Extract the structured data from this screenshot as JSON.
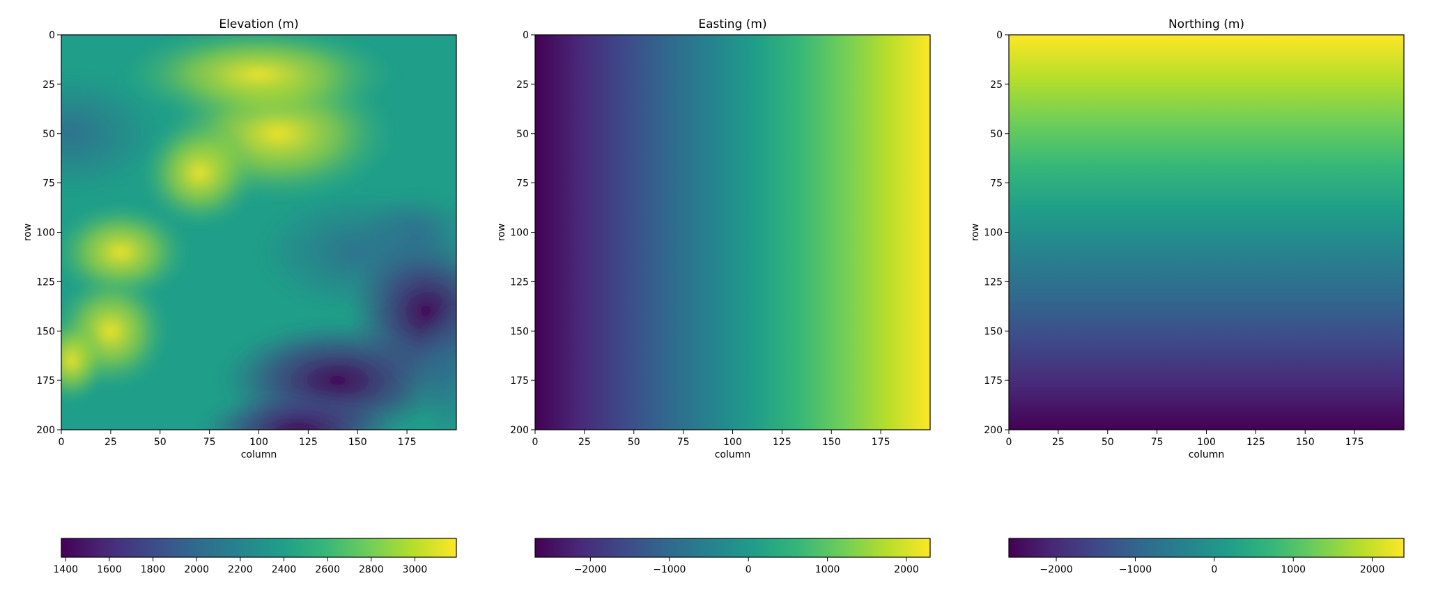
{
  "chart_data": [
    {
      "type": "heatmap",
      "title": "Elevation (m)",
      "xlabel": "column",
      "ylabel": "row",
      "x_ticks": [
        0,
        25,
        50,
        75,
        100,
        125,
        150,
        175
      ],
      "y_ticks": [
        0,
        25,
        50,
        75,
        100,
        125,
        150,
        175,
        200
      ],
      "xlim": [
        0,
        200
      ],
      "ylim": [
        200,
        0
      ],
      "colormap": "viridis",
      "colorbar": {
        "orientation": "horizontal",
        "range": [
          1380,
          3190
        ],
        "ticks": [
          1400,
          1600,
          1800,
          2000,
          2200,
          2400,
          2600,
          2800,
          3000
        ],
        "tick_labels": [
          "1400",
          "1600",
          "1800",
          "2000",
          "2200",
          "2400",
          "2600",
          "2800",
          "3000"
        ]
      },
      "field": "terrain (high ridges in upper-left, deep valley toward lower-right)"
    },
    {
      "type": "heatmap",
      "title": "Easting (m)",
      "xlabel": "column",
      "ylabel": "row",
      "x_ticks": [
        0,
        25,
        50,
        75,
        100,
        125,
        150,
        175
      ],
      "y_ticks": [
        0,
        25,
        50,
        75,
        100,
        125,
        150,
        175,
        200
      ],
      "xlim": [
        0,
        200
      ],
      "ylim": [
        200,
        0
      ],
      "colormap": "viridis",
      "colorbar": {
        "orientation": "horizontal",
        "range": [
          -2700,
          2300
        ],
        "ticks": [
          -2000,
          -1000,
          0,
          1000,
          2000
        ],
        "tick_labels": [
          "−2000",
          "−1000",
          "0",
          "1000",
          "2000"
        ]
      },
      "field": "linear gradient increasing left to right"
    },
    {
      "type": "heatmap",
      "title": "Northing (m)",
      "xlabel": "column",
      "ylabel": "row",
      "x_ticks": [
        0,
        25,
        50,
        75,
        100,
        125,
        150,
        175
      ],
      "y_ticks": [
        0,
        25,
        50,
        75,
        100,
        125,
        150,
        175,
        200
      ],
      "xlim": [
        0,
        200
      ],
      "ylim": [
        200,
        0
      ],
      "colormap": "viridis",
      "colorbar": {
        "orientation": "horizontal",
        "range": [
          -2600,
          2400
        ],
        "ticks": [
          -2000,
          -1000,
          0,
          1000,
          2000
        ],
        "tick_labels": [
          "−2000",
          "−1000",
          "0",
          "1000",
          "2000"
        ]
      },
      "field": "linear gradient increasing bottom to top"
    }
  ],
  "colors": {
    "viridis": [
      "#440154",
      "#482878",
      "#3e4989",
      "#31688e",
      "#26828e",
      "#1f9e89",
      "#35b779",
      "#6ece58",
      "#b5de2b",
      "#fde725"
    ],
    "axis": "#000000"
  }
}
